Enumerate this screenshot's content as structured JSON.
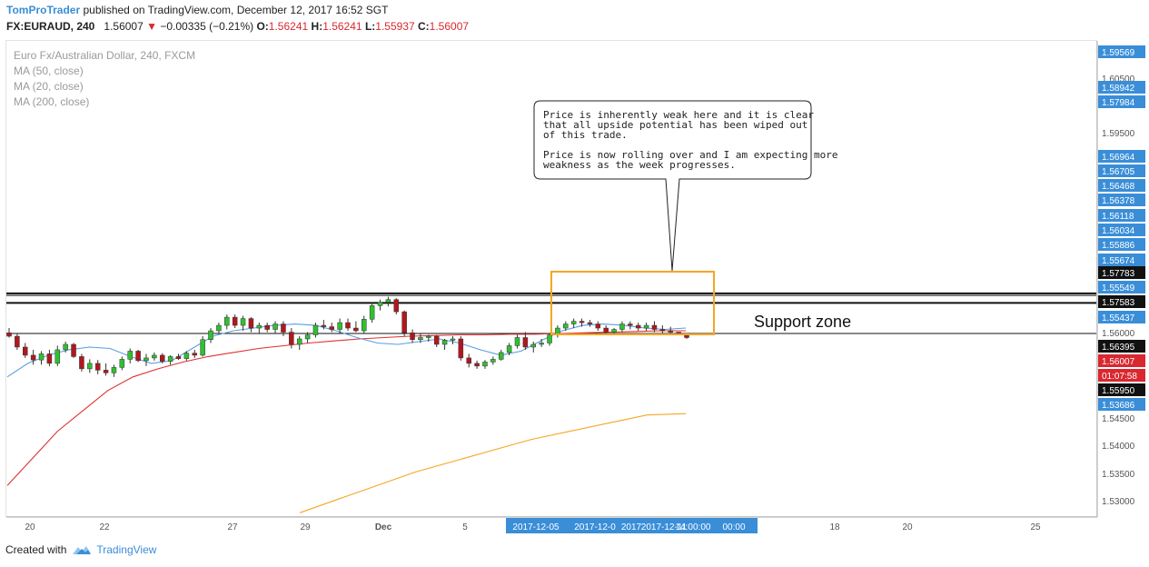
{
  "header": {
    "author": "TomProTrader",
    "published_text": "published on TradingView.com, December 12, 2017 16:52 SGT",
    "symbol": "FX:EURAUD, 240",
    "last": "1.56007",
    "change": "−0.00335 (−0.21%)",
    "o_label": "O:",
    "o": "1.56241",
    "h_label": "H:",
    "h": "1.56241",
    "l_label": "L:",
    "l": "1.55937",
    "c_label": "C:",
    "c": "1.56007"
  },
  "legend": {
    "instrument": "Euro Fx/Australian Dollar, 240, FXCM",
    "ma50": "MA (50, close)",
    "ma20": "MA (20, close)",
    "ma200": "MA (200, close)"
  },
  "annotations": {
    "callout_line1": "Price is inherently weak here and it is clear",
    "callout_line2": "that all upside potential has been wiped out",
    "callout_line3": "of this trade.",
    "callout_line4": "Price is now rolling over and I am expecting more",
    "callout_line5": "weakness as the week progresses.",
    "support_zone": "Support zone"
  },
  "footer": {
    "created_with": "Created with",
    "brand": "TradingView"
  },
  "colors": {
    "up": "#2fc12f",
    "down": "#b0181e",
    "ma50": "#e03030",
    "ma20": "#5a9ee0",
    "ma200": "#f5a623",
    "box": "#f5a623",
    "axis_blue": "#3a8ed8",
    "axis_red": "#d9282f"
  },
  "chart_data": {
    "type": "candlestick",
    "ylim": [
      1.5275,
      1.5975
    ],
    "y_ticks": [
      "1.59569",
      "1.60500",
      "1.58942",
      "1.57984",
      "1.59500",
      "1.56964",
      "1.56705",
      "1.56468",
      "1.56378",
      "1.56118",
      "1.56034",
      "1.55886",
      "1.55674",
      "1.57783",
      "1.55549",
      "1.57583",
      "1.55437",
      "1.56000",
      "1.56395",
      "1.56007",
      "01:07:58",
      "1.55950",
      "1.53686",
      "1.54500",
      "1.54000",
      "1.53500",
      "1.53000"
    ],
    "x_ticks": [
      "20",
      "22",
      "27",
      "29",
      "Dec",
      "5",
      "2017-12-05",
      "2017-12-0",
      "2017",
      "2017-12-11",
      "14:00:00",
      "00:00",
      "18",
      "20",
      "25"
    ],
    "horizontal_levels": [
      1.5603,
      1.5589,
      1.5544,
      1.56
    ],
    "candles": [
      [
        1.5545,
        1.5552,
        1.5538,
        1.554
      ],
      [
        1.554,
        1.5544,
        1.552,
        1.5524
      ],
      [
        1.5524,
        1.553,
        1.5508,
        1.5512
      ],
      [
        1.5512,
        1.552,
        1.5498,
        1.5505
      ],
      [
        1.5505,
        1.5518,
        1.5498,
        1.5514
      ],
      [
        1.5514,
        1.552,
        1.5496,
        1.55
      ],
      [
        1.55,
        1.5526,
        1.5496,
        1.552
      ],
      [
        1.552,
        1.5532,
        1.5516,
        1.5528
      ],
      [
        1.5528,
        1.553,
        1.5508,
        1.551
      ],
      [
        1.551,
        1.5514,
        1.5488,
        1.5492
      ],
      [
        1.5492,
        1.5506,
        1.5486,
        1.55
      ],
      [
        1.55,
        1.5505,
        1.5484,
        1.549
      ],
      [
        1.549,
        1.55,
        1.5482,
        1.5486
      ],
      [
        1.5486,
        1.5498,
        1.548,
        1.5494
      ],
      [
        1.5494,
        1.551,
        1.549,
        1.5506
      ],
      [
        1.5506,
        1.5522,
        1.55,
        1.5518
      ],
      [
        1.5518,
        1.552,
        1.5502,
        1.5504
      ],
      [
        1.5504,
        1.5514,
        1.5496,
        1.5508
      ],
      [
        1.5508,
        1.5516,
        1.5504,
        1.5512
      ],
      [
        1.5512,
        1.5515,
        1.55,
        1.5503
      ],
      [
        1.5503,
        1.5512,
        1.5498,
        1.551
      ],
      [
        1.551,
        1.5514,
        1.5505,
        1.5507
      ],
      [
        1.5507,
        1.5518,
        1.5504,
        1.5515
      ],
      [
        1.5515,
        1.552,
        1.5508,
        1.5512
      ],
      [
        1.5512,
        1.554,
        1.551,
        1.5535
      ],
      [
        1.5535,
        1.5552,
        1.553,
        1.5548
      ],
      [
        1.5548,
        1.556,
        1.5544,
        1.5556
      ],
      [
        1.5556,
        1.5572,
        1.555,
        1.5568
      ],
      [
        1.5568,
        1.5572,
        1.5552,
        1.5556
      ],
      [
        1.5556,
        1.557,
        1.5548,
        1.5566
      ],
      [
        1.5566,
        1.5568,
        1.5546,
        1.5552
      ],
      [
        1.5552,
        1.556,
        1.5544,
        1.5556
      ],
      [
        1.5556,
        1.556,
        1.5546,
        1.555
      ],
      [
        1.555,
        1.5562,
        1.5544,
        1.5558
      ],
      [
        1.5558,
        1.5562,
        1.554,
        1.5546
      ],
      [
        1.5546,
        1.5552,
        1.5522,
        1.5528
      ],
      [
        1.5528,
        1.554,
        1.552,
        1.5536
      ],
      [
        1.5536,
        1.5546,
        1.553,
        1.5542
      ],
      [
        1.5542,
        1.556,
        1.5538,
        1.5556
      ],
      [
        1.5556,
        1.5564,
        1.555,
        1.5554
      ],
      [
        1.5554,
        1.556,
        1.5546,
        1.555
      ],
      [
        1.555,
        1.5566,
        1.5544,
        1.556
      ],
      [
        1.556,
        1.5566,
        1.5548,
        1.5552
      ],
      [
        1.5552,
        1.5562,
        1.5546,
        1.5548
      ],
      [
        1.5548,
        1.557,
        1.5544,
        1.5565
      ],
      [
        1.5565,
        1.559,
        1.556,
        1.5585
      ],
      [
        1.5585,
        1.5594,
        1.5578,
        1.559
      ],
      [
        1.559,
        1.5598,
        1.5584,
        1.5594
      ],
      [
        1.5594,
        1.5596,
        1.5572,
        1.5576
      ],
      [
        1.5576,
        1.5578,
        1.554,
        1.5545
      ],
      [
        1.5545,
        1.555,
        1.553,
        1.5535
      ],
      [
        1.5535,
        1.5544,
        1.553,
        1.5538
      ],
      [
        1.5538,
        1.5542,
        1.5532,
        1.554
      ],
      [
        1.554,
        1.5542,
        1.5524,
        1.5528
      ],
      [
        1.5528,
        1.5536,
        1.552,
        1.5534
      ],
      [
        1.5534,
        1.554,
        1.5528,
        1.5536
      ],
      [
        1.5536,
        1.554,
        1.5504,
        1.5508
      ],
      [
        1.5508,
        1.5514,
        1.5494,
        1.55
      ],
      [
        1.55,
        1.5504,
        1.5492,
        1.5496
      ],
      [
        1.5496,
        1.5505,
        1.5492,
        1.5502
      ],
      [
        1.5502,
        1.551,
        1.5498,
        1.5506
      ],
      [
        1.5506,
        1.552,
        1.5504,
        1.5516
      ],
      [
        1.5516,
        1.553,
        1.5512,
        1.5526
      ],
      [
        1.5526,
        1.5542,
        1.5522,
        1.5538
      ],
      [
        1.5538,
        1.5546,
        1.552,
        1.5524
      ],
      [
        1.5524,
        1.5532,
        1.5516,
        1.5528
      ],
      [
        1.5528,
        1.5536,
        1.5524,
        1.553
      ],
      [
        1.553,
        1.5545,
        1.5526,
        1.5542
      ],
      [
        1.5542,
        1.5556,
        1.5538,
        1.5552
      ],
      [
        1.5552,
        1.5562,
        1.5548,
        1.5558
      ],
      [
        1.5558,
        1.5566,
        1.5552,
        1.5562
      ],
      [
        1.5562,
        1.5566,
        1.5554,
        1.556
      ],
      [
        1.556,
        1.5564,
        1.5554,
        1.5558
      ],
      [
        1.5558,
        1.5562,
        1.5548,
        1.5552
      ],
      [
        1.5552,
        1.5556,
        1.5542,
        1.5546
      ],
      [
        1.5546,
        1.5552,
        1.5542,
        1.555
      ],
      [
        1.555,
        1.5562,
        1.5546,
        1.5558
      ],
      [
        1.5558,
        1.5562,
        1.555,
        1.5556
      ],
      [
        1.5556,
        1.556,
        1.5548,
        1.5552
      ],
      [
        1.5552,
        1.556,
        1.5548,
        1.5556
      ],
      [
        1.5556,
        1.5562,
        1.5546,
        1.555
      ],
      [
        1.555,
        1.5556,
        1.5544,
        1.5548
      ],
      [
        1.5548,
        1.5554,
        1.5544,
        1.5546
      ],
      [
        1.5546,
        1.5546,
        1.5542,
        1.5544
      ],
      [
        1.5544,
        1.5544,
        1.5536,
        1.5538
      ]
    ],
    "ma20": [
      1.548,
      1.55,
      1.5512,
      1.552,
      1.5524,
      1.5522,
      1.551,
      1.55,
      1.5504,
      1.5522,
      1.554,
      1.5548,
      1.5552,
      1.5556,
      1.5558,
      1.5556,
      1.5548,
      1.5538,
      1.553,
      1.5528,
      1.5532,
      1.5536,
      1.553,
      1.552,
      1.5512,
      1.5518,
      1.5534,
      1.5548,
      1.5556,
      1.5558,
      1.5556,
      1.5552,
      1.555,
      1.5552
    ],
    "ma50": [
      1.532,
      1.536,
      1.54,
      1.543,
      1.546,
      1.548,
      1.5492,
      1.5502,
      1.551,
      1.5516,
      1.5522,
      1.5526,
      1.553,
      1.5533,
      1.5536,
      1.5538,
      1.554,
      1.5541,
      1.5542,
      1.5542,
      1.5543,
      1.5543,
      1.5544,
      1.5545,
      1.5546,
      1.5547,
      1.5548,
      1.5548
    ],
    "ma200": [
      1.528,
      1.53,
      1.532,
      1.534,
      1.5356,
      1.5372,
      1.5388,
      1.54,
      1.5412,
      1.5424,
      1.5426
    ]
  }
}
